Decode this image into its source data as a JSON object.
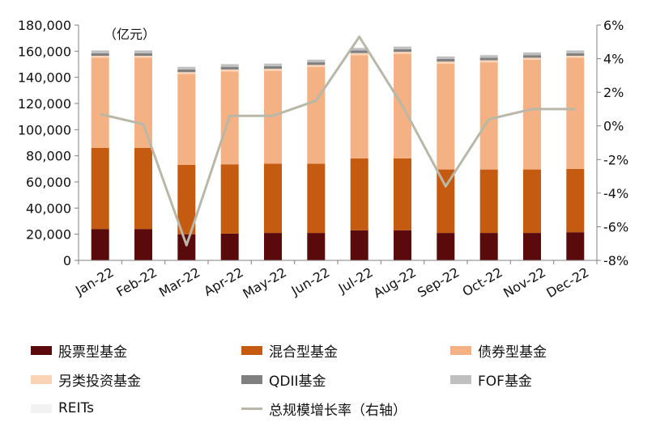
{
  "chart_data": {
    "type": "bar",
    "stacked": true,
    "unit_label": "（亿元）",
    "categories": [
      "Jan-22",
      "Feb-22",
      "Mar-22",
      "Apr-22",
      "May-22",
      "Jun-22",
      "Jul-22",
      "Aug-22",
      "Sep-22",
      "Oct-22",
      "Nov-22",
      "Dec-22"
    ],
    "y_left": {
      "lim": [
        0,
        180000
      ],
      "ticks": [
        "0",
        "20,000",
        "40,000",
        "60,000",
        "80,000",
        "100,000",
        "120,000",
        "140,000",
        "160,000",
        "180,000"
      ]
    },
    "y_right": {
      "lim": [
        -8,
        6
      ],
      "ticks": [
        "-8%",
        "-6%",
        "-4%",
        "-2%",
        "0%",
        "2%",
        "4%",
        "6%"
      ]
    },
    "series": [
      {
        "name": "股票型基金",
        "color": "#5a0a0a",
        "values": [
          24000,
          24000,
          20000,
          20500,
          21000,
          21000,
          23000,
          23000,
          21000,
          21000,
          21000,
          21500
        ]
      },
      {
        "name": "混合型基金",
        "color": "#c55a11",
        "values": [
          62000,
          62000,
          53000,
          53000,
          53000,
          53000,
          55000,
          55000,
          48500,
          48500,
          48500,
          48500
        ]
      },
      {
        "name": "债券型基金",
        "color": "#f4b183",
        "values": [
          69000,
          69000,
          69500,
          71000,
          71000,
          74000,
          79000,
          80000,
          81000,
          82000,
          84000,
          85000
        ]
      },
      {
        "name": "另类投资基金",
        "color": "#fbd3b5",
        "values": [
          1500,
          1500,
          1500,
          1500,
          1500,
          1500,
          1500,
          1500,
          1500,
          1500,
          1500,
          1500
        ]
      },
      {
        "name": "QDII基金",
        "color": "#808080",
        "values": [
          2000,
          2000,
          2000,
          2000,
          2000,
          2000,
          2000,
          2000,
          2000,
          2000,
          2000,
          2000
        ]
      },
      {
        "name": "FOF基金",
        "color": "#bfbfbf",
        "values": [
          2000,
          2000,
          2000,
          2000,
          2000,
          2000,
          2000,
          2000,
          2000,
          2000,
          2000,
          2000
        ]
      },
      {
        "name": "REITs",
        "color": "#f2f2f2",
        "values": [
          400,
          400,
          400,
          400,
          400,
          400,
          400,
          400,
          400,
          400,
          400,
          400
        ]
      }
    ],
    "line_series": {
      "name": "总规模增长率（右轴）",
      "color": "#b9b8a8",
      "axis": "right",
      "values": [
        0.7,
        0.1,
        -7.1,
        0.6,
        0.6,
        1.5,
        5.3,
        1.2,
        -3.6,
        0.4,
        1.0,
        1.0
      ]
    }
  }
}
